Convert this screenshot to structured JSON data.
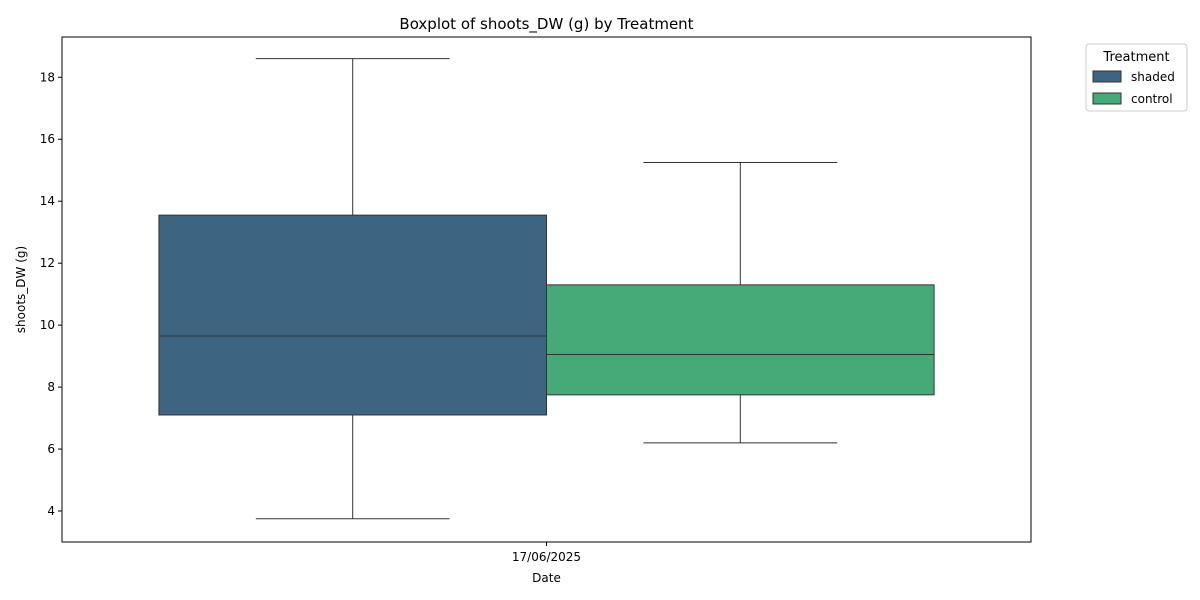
{
  "chart_data": {
    "type": "boxplot",
    "title": "Boxplot of shoots_DW (g) by Treatment",
    "xlabel": "Date",
    "ylabel": "shoots_DW (g)",
    "categories": [
      "17/06/2025"
    ],
    "ylim": [
      3.0,
      19.3
    ],
    "yticks": [
      4,
      6,
      8,
      10,
      12,
      14,
      16,
      18
    ],
    "grid": false,
    "legend": {
      "title": "Treatment",
      "placement": "outside-top-right"
    },
    "series": [
      {
        "name": "shaded",
        "color": "#3d6582",
        "boxes": [
          {
            "category": "17/06/2025",
            "whisker_low": 3.75,
            "q1": 7.1,
            "median": 9.65,
            "q3": 13.55,
            "whisker_high": 18.6
          }
        ]
      },
      {
        "name": "control",
        "color": "#46a978",
        "boxes": [
          {
            "category": "17/06/2025",
            "whisker_low": 6.2,
            "q1": 7.75,
            "median": 9.05,
            "q3": 11.3,
            "whisker_high": 15.25
          }
        ]
      }
    ]
  }
}
